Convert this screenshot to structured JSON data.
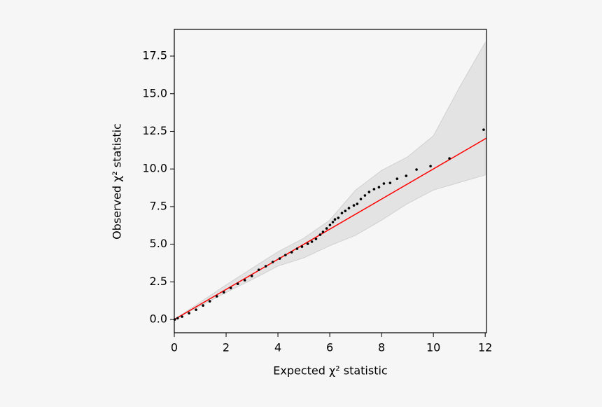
{
  "chart_data": {
    "type": "scatter",
    "x_label": "Expected χ² statistic",
    "y_label": "Observed χ² statistic",
    "xlim": [
      0,
      12.05
    ],
    "ylim": [
      -0.88,
      19.27
    ],
    "xticks": [
      0,
      2,
      4,
      6,
      8,
      10,
      12
    ],
    "yticks": [
      {
        "value": 0,
        "label": "0.0"
      },
      2.5,
      {
        "value": 5,
        "label": "5.0"
      },
      7.5,
      {
        "value": 10,
        "label": "10.0"
      },
      12.5,
      {
        "value": 15,
        "label": "15.0"
      },
      17.5
    ],
    "band": {
      "color": "#e3e3e3",
      "edge_color": "#d0d0d0",
      "x": [
        0,
        1,
        2,
        3,
        4,
        5,
        6,
        7,
        8,
        9,
        10,
        11,
        12
      ],
      "upper": [
        0,
        1.15,
        2.3,
        3.4,
        4.5,
        5.4,
        6.6,
        8.6,
        9.9,
        10.8,
        12.2,
        15.4,
        18.4
      ],
      "lower": [
        0,
        0.9,
        1.8,
        2.65,
        3.55,
        4.1,
        4.9,
        5.6,
        6.6,
        7.7,
        8.6,
        9.1,
        9.6
      ]
    },
    "reference_line": {
      "color": "#ff0000",
      "x": [
        0,
        12.05
      ],
      "y": [
        0,
        12.05
      ]
    },
    "series": [
      {
        "color": "#000000",
        "x": [
          0.02,
          0.13,
          0.3,
          0.57,
          0.84,
          1.11,
          1.37,
          1.64,
          1.91,
          2.18,
          2.45,
          2.72,
          2.99,
          3.26,
          3.53,
          3.8,
          4.07,
          4.29,
          4.53,
          4.74,
          4.93,
          5.15,
          5.31,
          5.47,
          5.63,
          5.74,
          5.88,
          6.01,
          6.12,
          6.2,
          6.33,
          6.47,
          6.6,
          6.74,
          6.93,
          7.06,
          7.2,
          7.36,
          7.52,
          7.71,
          7.9,
          8.09,
          8.33,
          8.6,
          8.95,
          9.35,
          9.89,
          10.62,
          11.94
        ],
        "values": [
          0,
          0.09,
          0.19,
          0.42,
          0.65,
          0.93,
          1.21,
          1.54,
          1.81,
          2.09,
          2.37,
          2.61,
          2.89,
          3.3,
          3.54,
          3.82,
          4.05,
          4.28,
          4.47,
          4.7,
          4.84,
          5.03,
          5.17,
          5.35,
          5.63,
          5.82,
          6.05,
          6.28,
          6.47,
          6.65,
          6.75,
          7.07,
          7.21,
          7.4,
          7.58,
          7.68,
          8.0,
          8.24,
          8.47,
          8.66,
          8.79,
          9.03,
          9.07,
          9.35,
          9.54,
          9.96,
          10.19,
          10.7,
          12.61
        ]
      }
    ]
  }
}
